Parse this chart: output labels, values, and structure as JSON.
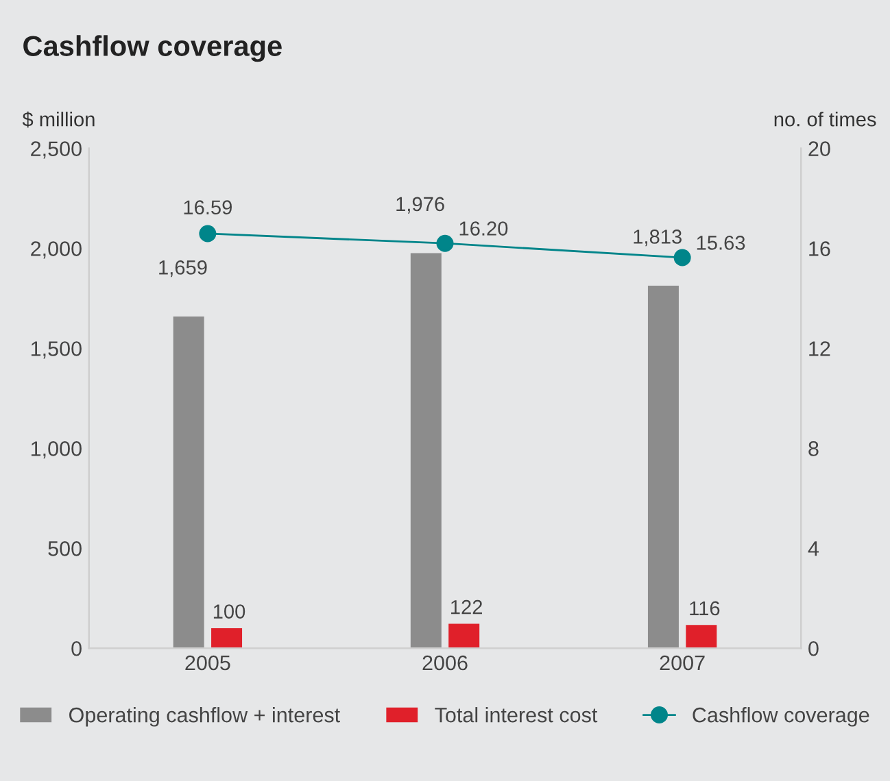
{
  "chart_data": {
    "type": "bar",
    "title": "Cashflow coverage",
    "ylabel": "$ million",
    "y2label": "no. of times",
    "categories": [
      "2005",
      "2006",
      "2007"
    ],
    "series": [
      {
        "name": "Operating cashflow + interest",
        "color": "#8c8c8c",
        "values": [
          1659,
          1976,
          1813
        ]
      },
      {
        "name": "Total interest cost",
        "color": "#e0202a",
        "values": [
          100,
          122,
          116
        ]
      },
      {
        "name": "Cashflow coverage",
        "type": "line",
        "axis": "y2",
        "color": "#00858a",
        "values": [
          16.59,
          16.2,
          15.63
        ],
        "marker": "circle"
      }
    ],
    "ylim": [
      0,
      2500
    ],
    "yticks": [
      0,
      {
        "value": 500,
        "label": "500"
      },
      {
        "value": 1000,
        "label": "1,000"
      },
      {
        "value": 1500,
        "label": "1,500"
      },
      {
        "value": 2000,
        "label": "2,000"
      },
      {
        "value": 2500,
        "label": "2,500"
      }
    ],
    "y2lim": [
      0,
      20
    ],
    "y2ticks": [
      0,
      4,
      8,
      12,
      16,
      20
    ],
    "value_labels": [
      [
        "1,659",
        "1,976",
        "1,813"
      ],
      [
        "100",
        "122",
        "116"
      ],
      [
        "16.59",
        "16.20",
        "15.63"
      ]
    ],
    "grid": false,
    "legend": "bottom"
  }
}
